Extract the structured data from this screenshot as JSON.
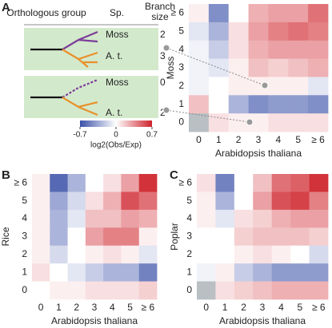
{
  "panel_labels": [
    "A",
    "B",
    "C"
  ],
  "diagram": {
    "header": {
      "group": "Orthologous group",
      "species": "Sp.",
      "branch_size": "Branch size"
    },
    "cases": [
      {
        "rows": [
          {
            "species": "Moss",
            "branch_size": 2
          },
          {
            "species": "A. t.",
            "branch_size": 3
          }
        ]
      },
      {
        "rows": [
          {
            "species": "Moss",
            "branch_size": 0
          },
          {
            "species": "A. t.",
            "branch_size": 2
          }
        ]
      }
    ]
  },
  "colorbar": {
    "vlim": [
      -0.7,
      0.7
    ],
    "ticks": [
      -0.7,
      0,
      0.7
    ],
    "label": "log2(Obs/Exp)",
    "colors": [
      "#3a50a8",
      "#ffffff",
      "#ce222a"
    ],
    "missing_color": "#b9bfc3"
  },
  "chart_data": [
    {
      "type": "heatmap",
      "x_categories": [
        "0",
        "1",
        "2",
        "3",
        "4",
        "5",
        "≥ 6"
      ],
      "y_categories": [
        "≥ 6",
        "5",
        "4",
        "3",
        "2",
        "1",
        "0"
      ],
      "xlabel": "Arabidopsis thaliana",
      "ylabel": "Moss",
      "vlim": [
        -0.7,
        0.7
      ],
      "values": [
        [
          0.05,
          -0.45,
          0.0,
          0.25,
          0.3,
          0.3,
          0.45
        ],
        [
          -0.1,
          -0.3,
          0.1,
          0.3,
          0.4,
          0.45,
          0.4
        ],
        [
          -0.05,
          -0.2,
          0.1,
          0.25,
          0.3,
          0.3,
          0.3
        ],
        [
          -0.05,
          -0.1,
          0.05,
          0.2,
          0.15,
          0.2,
          0.25
        ],
        [
          -0.05,
          0.0,
          0.05,
          0.05,
          0.05,
          0.05,
          -0.1
        ],
        [
          0.2,
          0.0,
          -0.3,
          -0.45,
          -0.4,
          -0.4,
          -0.45
        ],
        [
          null,
          0.1,
          0.05,
          0.05,
          0.1,
          0.1,
          0.1
        ]
      ]
    },
    {
      "type": "heatmap",
      "x_categories": [
        "0",
        "1",
        "2",
        "3",
        "4",
        "5",
        "≥ 6"
      ],
      "y_categories": [
        "≥ 6",
        "5",
        "4",
        "3",
        "2",
        "1",
        "0"
      ],
      "xlabel": "Arabidopsis thaliana",
      "ylabel": "Rice",
      "vlim": [
        -0.7,
        0.7
      ],
      "values": [
        [
          0.05,
          -0.6,
          -0.3,
          0.0,
          0.1,
          0.3,
          0.65
        ],
        [
          0.05,
          -0.35,
          -0.15,
          0.1,
          0.25,
          0.55,
          0.45
        ],
        [
          0.05,
          -0.3,
          -0.1,
          0.2,
          0.2,
          0.3,
          0.25
        ],
        [
          0.05,
          -0.3,
          0.0,
          0.3,
          0.4,
          0.4,
          0.05
        ],
        [
          0.05,
          -0.15,
          0.0,
          0.05,
          0.1,
          0.05,
          -0.1
        ],
        [
          0.1,
          0.0,
          -0.1,
          -0.2,
          -0.3,
          -0.3,
          -0.5
        ],
        [
          0.0,
          0.05,
          0.05,
          0.1,
          0.1,
          0.1,
          0.15
        ]
      ]
    },
    {
      "type": "heatmap",
      "x_categories": [
        "0",
        "1",
        "2",
        "3",
        "4",
        "5",
        "≥ 6"
      ],
      "y_categories": [
        "≥ 6",
        "5",
        "4",
        "3",
        "2",
        "1",
        "0"
      ],
      "xlabel": "Arabidopsis thaliana",
      "ylabel": "Poplar",
      "vlim": [
        -0.7,
        0.7
      ],
      "values": [
        [
          0.1,
          -0.5,
          0.0,
          0.2,
          0.45,
          0.5,
          0.65
        ],
        [
          0.05,
          -0.3,
          0.0,
          0.3,
          0.55,
          0.6,
          0.4
        ],
        [
          0.05,
          -0.1,
          0.1,
          0.15,
          0.25,
          0.3,
          0.3
        ],
        [
          0.0,
          0.0,
          0.15,
          0.2,
          0.2,
          0.2,
          0.15
        ],
        [
          0.0,
          0.0,
          0.05,
          0.1,
          0.05,
          0.0,
          -0.15
        ],
        [
          -0.05,
          0.05,
          -0.2,
          -0.3,
          -0.4,
          -0.4,
          -0.4
        ],
        [
          null,
          0.1,
          0.15,
          0.2,
          0.25,
          0.25,
          0.25
        ]
      ]
    }
  ]
}
